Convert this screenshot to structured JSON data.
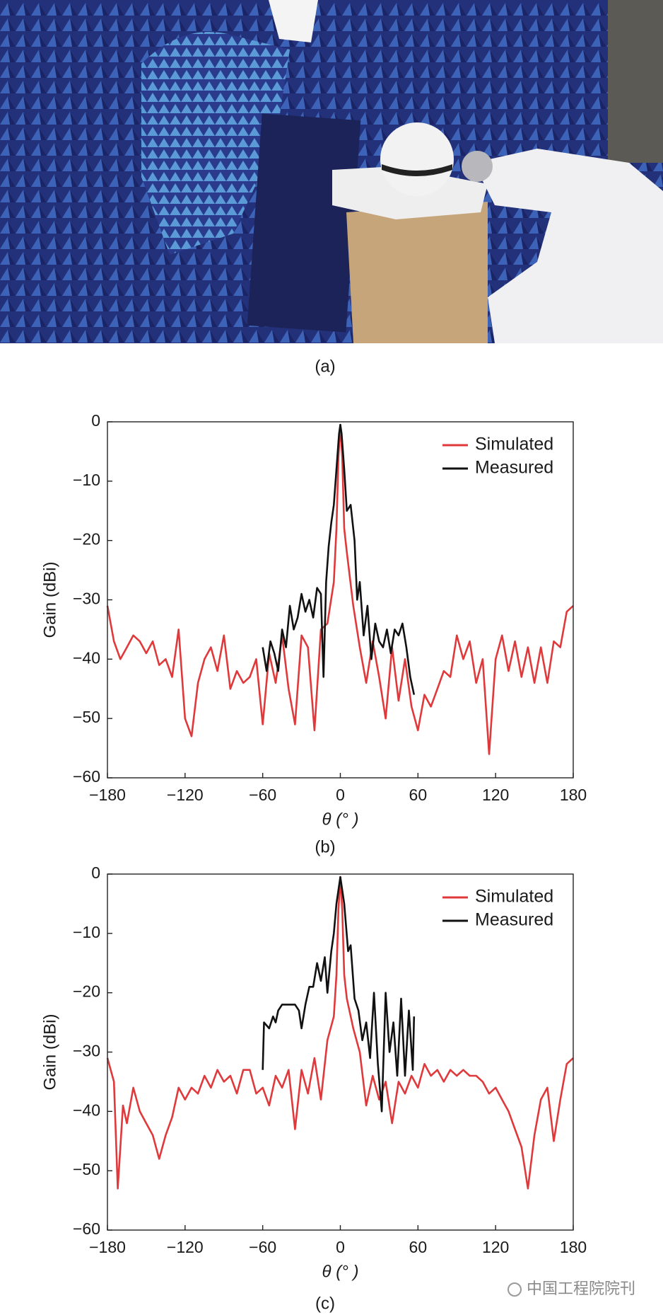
{
  "captions": [
    "(a)",
    "(b)",
    "(c)"
  ],
  "watermark": "中国工程院院刊",
  "chart_data": [
    {
      "type": "line",
      "y_label": "Gain (dBi)",
      "x_label": "θ (° )",
      "xlim": [
        -180,
        180
      ],
      "ylim": [
        -60,
        0
      ],
      "xticks": [
        {
          "value": -180,
          "label": "−180"
        },
        {
          "value": -120,
          "label": "−120"
        },
        {
          "value": -60,
          "label": "−60"
        },
        0,
        60,
        120,
        180
      ],
      "yticks": [
        0,
        {
          "value": -10,
          "label": "−10"
        },
        {
          "value": -20,
          "label": "−20"
        },
        {
          "value": -30,
          "label": "−30"
        },
        {
          "value": -40,
          "label": "−40"
        },
        {
          "value": -50,
          "label": "−50"
        },
        {
          "value": -60,
          "label": "−60"
        }
      ],
      "legend": "upper right",
      "series": [
        {
          "name": "Simulated",
          "color": "#e0393b",
          "x": [
            -180,
            -175,
            -170,
            -165,
            -160,
            -155,
            -150,
            -145,
            -140,
            -135,
            -130,
            -125,
            -120,
            -115,
            -110,
            -105,
            -100,
            -95,
            -90,
            -85,
            -80,
            -75,
            -70,
            -65,
            -60,
            -55,
            -50,
            -45,
            -40,
            -35,
            -30,
            -25,
            -20,
            -15,
            -10,
            -5,
            -3,
            -1.5,
            0,
            1.5,
            3,
            5,
            10,
            15,
            20,
            25,
            30,
            35,
            40,
            45,
            50,
            55,
            60,
            65,
            70,
            75,
            80,
            85,
            90,
            95,
            100,
            105,
            110,
            115,
            120,
            125,
            130,
            135,
            140,
            145,
            150,
            155,
            160,
            165,
            170,
            175,
            180
          ],
          "values": [
            -31,
            -37,
            -40,
            -38,
            -36,
            -37,
            -39,
            -37,
            -41,
            -40,
            -43,
            -35,
            -50,
            -53,
            -44,
            -40,
            -38,
            -42,
            -36,
            -45,
            -42,
            -44,
            -43,
            -40,
            -51,
            -39,
            -44,
            -36,
            -45,
            -51,
            -36,
            -38,
            -52,
            -35,
            -34,
            -27,
            -18,
            -6,
            -0.5,
            -6,
            -18,
            -22,
            -31,
            -38,
            -44,
            -37,
            -43,
            -50,
            -38,
            -47,
            -40,
            -48,
            -52,
            -46,
            -48,
            -45,
            -42,
            -43,
            -36,
            -40,
            -37,
            -44,
            -40,
            -56,
            -40,
            -36,
            -42,
            -37,
            -43,
            -38,
            -44,
            -38,
            -44,
            -37,
            -38,
            -32,
            -31
          ]
        },
        {
          "name": "Measured",
          "color": "#111111",
          "x": [
            -60,
            -57,
            -54,
            -51,
            -48,
            -45,
            -42,
            -39,
            -36,
            -33,
            -30,
            -27,
            -24,
            -21,
            -18,
            -15,
            -13,
            -11,
            -9,
            -7,
            -5,
            -3,
            -1,
            0,
            1,
            3,
            5,
            8,
            11,
            13,
            15,
            18,
            21,
            24,
            27,
            30,
            33,
            36,
            39,
            42,
            45,
            48,
            51,
            54,
            57
          ],
          "values": [
            -38,
            -42,
            -37,
            -39,
            -42,
            -35,
            -38,
            -31,
            -35,
            -33,
            -29,
            -32,
            -30,
            -33,
            -28,
            -29,
            -43,
            -27,
            -21,
            -17,
            -14,
            -8,
            -2,
            -0.5,
            -2,
            -8,
            -15,
            -14,
            -20,
            -30,
            -27,
            -36,
            -31,
            -40,
            -34,
            -37,
            -38,
            -35,
            -39,
            -35,
            -36,
            -34,
            -38,
            -43,
            -46
          ]
        }
      ]
    },
    {
      "type": "line",
      "y_label": "Gain (dBi)",
      "x_label": "θ (° )",
      "xlim": [
        -180,
        180
      ],
      "ylim": [
        -60,
        0
      ],
      "xticks": [
        {
          "value": -180,
          "label": "−180"
        },
        {
          "value": -120,
          "label": "−120"
        },
        {
          "value": -60,
          "label": "−60"
        },
        0,
        60,
        120,
        180
      ],
      "yticks": [
        0,
        {
          "value": -10,
          "label": "−10"
        },
        {
          "value": -20,
          "label": "−20"
        },
        {
          "value": -30,
          "label": "−30"
        },
        {
          "value": -40,
          "label": "−40"
        },
        {
          "value": -50,
          "label": "−50"
        },
        {
          "value": -60,
          "label": "−60"
        }
      ],
      "legend": "upper right",
      "series": [
        {
          "name": "Simulated",
          "color": "#e0393b",
          "x": [
            -180,
            -175,
            -172,
            -168,
            -165,
            -160,
            -155,
            -150,
            -145,
            -140,
            -135,
            -130,
            -125,
            -120,
            -115,
            -110,
            -105,
            -100,
            -95,
            -90,
            -85,
            -80,
            -75,
            -70,
            -65,
            -60,
            -55,
            -50,
            -45,
            -40,
            -35,
            -30,
            -25,
            -20,
            -15,
            -10,
            -5,
            -3,
            -1.5,
            0,
            1.5,
            3,
            5,
            10,
            15,
            20,
            25,
            30,
            35,
            40,
            45,
            50,
            55,
            60,
            65,
            70,
            75,
            80,
            85,
            90,
            95,
            100,
            105,
            110,
            115,
            120,
            125,
            130,
            135,
            140,
            145,
            150,
            155,
            160,
            165,
            170,
            175,
            180
          ],
          "values": [
            -31,
            -35,
            -53,
            -39,
            -42,
            -36,
            -40,
            -42,
            -44,
            -48,
            -44,
            -41,
            -36,
            -38,
            -36,
            -37,
            -34,
            -36,
            -33,
            -35,
            -34,
            -37,
            -33,
            -33,
            -37,
            -36,
            -39,
            -34,
            -36,
            -33,
            -43,
            -33,
            -37,
            -31,
            -38,
            -28,
            -24,
            -17,
            -6,
            -0.5,
            -6,
            -17,
            -21,
            -26,
            -30,
            -39,
            -34,
            -38,
            -35,
            -42,
            -35,
            -37,
            -34,
            -36,
            -32,
            -34,
            -33,
            -35,
            -33,
            -34,
            -33,
            -34,
            -34,
            -35,
            -37,
            -36,
            -38,
            -40,
            -43,
            -46,
            -53,
            -44,
            -38,
            -36,
            -45,
            -38,
            -32,
            -31
          ]
        },
        {
          "name": "Measured",
          "color": "#111111",
          "x": [
            -60,
            -59,
            -55,
            -52,
            -50,
            -48,
            -45,
            -40,
            -35,
            -32,
            -30,
            -27,
            -24,
            -21,
            -18,
            -15,
            -12,
            -10,
            -7,
            -5,
            -3,
            0,
            3,
            6,
            8,
            11,
            14,
            17,
            20,
            23,
            26,
            29,
            32,
            35,
            38,
            41,
            44,
            47,
            50,
            53,
            56,
            57
          ],
          "values": [
            -33,
            -25,
            -26,
            -24,
            -25,
            -23,
            -22,
            -22,
            -22,
            -23,
            -26,
            -22,
            -19,
            -19,
            -15,
            -18,
            -14,
            -20,
            -13,
            -10,
            -5,
            -0.5,
            -5,
            -13,
            -12,
            -21,
            -23,
            -28,
            -25,
            -31,
            -20,
            -32,
            -40,
            -20,
            -30,
            -25,
            -34,
            -21,
            -34,
            -23,
            -33,
            -24
          ]
        }
      ]
    }
  ]
}
